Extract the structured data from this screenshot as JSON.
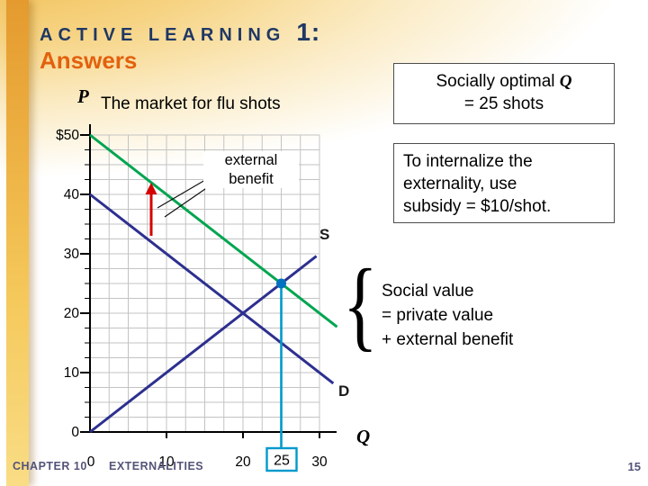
{
  "slide": {
    "title_prefix": "ACTIVE LEARNING",
    "title_number": "1:",
    "subtitle": "Answers",
    "footer": {
      "chapter": "CHAPTER 10",
      "section": "EXTERNALITIES",
      "page": "15"
    }
  },
  "chart": {
    "title": "The market for flu shots",
    "y_axis_label": "P",
    "x_axis_label": "Q",
    "y_ticks": [
      "$50",
      "40",
      "30",
      "20",
      "10",
      "0"
    ],
    "x_ticks": [
      "0",
      "10",
      "20",
      "30"
    ],
    "optimal_q_tick": "25",
    "supply_label": "S",
    "demand_label": "D",
    "external_benefit_annotation": "external benefit"
  },
  "callouts": {
    "optimal": {
      "line1_text": "Socially optimal ",
      "line1_var": "Q",
      "line2": "= 25 shots"
    },
    "internalize": {
      "line1": "To internalize the",
      "line2": "externality, use",
      "line3": "subsidy = $10/shot."
    },
    "social_value": {
      "line1": "Social value",
      "line2": "= private value",
      "line3": "+ external benefit",
      "brace": "{"
    }
  },
  "colors": {
    "supply_demand": "#2d2f8f",
    "social_value_green": "#00a550",
    "external_benefit_arrow": "#d40000",
    "optimum_marker": "#0070c0",
    "optimum_drop_line": "#0099cc",
    "title_navy": "#1F3864",
    "subtitle_orange": "#E2610D"
  },
  "chart_data": {
    "type": "line",
    "title": "The market for flu shots",
    "xlabel": "Q",
    "ylabel": "P",
    "xlim": [
      0,
      34
    ],
    "ylim": [
      0,
      52
    ],
    "x_tick_values": [
      0,
      10,
      20,
      25,
      30
    ],
    "y_tick_values": [
      0,
      10,
      20,
      30,
      40,
      50
    ],
    "grid": true,
    "series": [
      {
        "name": "S (supply)",
        "color": "#2d2f8f",
        "points": [
          [
            0,
            0
          ],
          [
            29.6,
            29.6
          ]
        ]
      },
      {
        "name": "D (demand, private value)",
        "color": "#2d2f8f",
        "points": [
          [
            0,
            40
          ],
          [
            31.8,
            8.2
          ]
        ]
      },
      {
        "name": "Social value = private value + external benefit",
        "color": "#00a550",
        "points": [
          [
            0,
            50
          ],
          [
            32.3,
            17.7
          ]
        ]
      }
    ],
    "annotations": {
      "external_benefit_per_shot": 10,
      "socially_optimal_q": 25,
      "private_equilibrium": {
        "q": 20,
        "p": 20
      },
      "optimum_point": {
        "q": 25,
        "p": 25
      },
      "subsidy": "$10/shot"
    }
  }
}
